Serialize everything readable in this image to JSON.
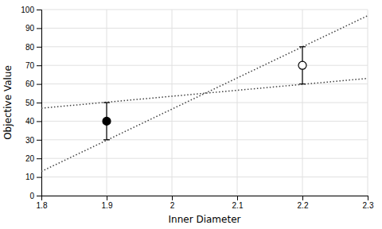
{
  "chart_data": {
    "type": "scatter",
    "xlabel": "Inner Diameter",
    "ylabel": "Objective Value",
    "series": [
      {
        "type": "line",
        "x": [
          1.8,
          2.3
        ],
        "values": [
          47,
          63
        ],
        "line_style": "dotted",
        "color": "#404040"
      },
      {
        "type": "line",
        "x": [
          1.8,
          2.3
        ],
        "values": [
          13,
          96.7
        ],
        "line_style": "dotted",
        "color": "#404040"
      },
      {
        "type": "scatter",
        "x": [
          1.9
        ],
        "values": [
          40
        ],
        "error_low": [
          10
        ],
        "error_high": [
          10
        ],
        "marker": "circle",
        "color": "#000000"
      },
      {
        "type": "scatter",
        "x": [
          2.2
        ],
        "values": [
          70
        ],
        "error_low": [
          10
        ],
        "error_high": [
          10
        ],
        "marker": "open-circle",
        "color": "#000000"
      }
    ],
    "xlim": [
      1.8,
      2.3
    ],
    "ylim": [
      0,
      100
    ],
    "xticks": [
      1.8,
      1.9,
      2.0,
      2.1,
      2.2,
      2.3
    ],
    "yticks": [
      0,
      10,
      20,
      30,
      40,
      50,
      60,
      70,
      80,
      90,
      100
    ],
    "grid": true
  }
}
